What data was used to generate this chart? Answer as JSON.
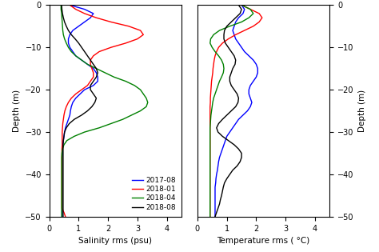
{
  "depth": [
    0,
    -1,
    -2,
    -3,
    -4,
    -5,
    -6,
    -7,
    -8,
    -9,
    -10,
    -11,
    -12,
    -13,
    -14,
    -15,
    -16,
    -17,
    -18,
    -19,
    -20,
    -21,
    -22,
    -23,
    -24,
    -25,
    -26,
    -27,
    -28,
    -29,
    -30,
    -31,
    -32,
    -33,
    -34,
    -35,
    -36,
    -37,
    -38,
    -39,
    -40,
    -41,
    -42,
    -43,
    -44,
    -45,
    -46,
    -47,
    -48,
    -49,
    -50
  ],
  "sal_2017_08": [
    0.7,
    1.2,
    1.5,
    1.4,
    1.2,
    1.0,
    0.8,
    0.7,
    0.65,
    0.65,
    0.7,
    0.8,
    0.9,
    1.1,
    1.3,
    1.5,
    1.6,
    1.65,
    1.65,
    1.5,
    1.2,
    1.05,
    0.9,
    0.8,
    0.75,
    0.72,
    0.7,
    0.65,
    0.6,
    0.55,
    0.52,
    0.5,
    0.48,
    0.46,
    0.45,
    0.45,
    0.44,
    0.44,
    0.44,
    0.44,
    0.44,
    0.44,
    0.44,
    0.44,
    0.44,
    0.44,
    0.44,
    0.44,
    0.44,
    0.44,
    0.44
  ],
  "sal_2018_01": [
    0.7,
    0.9,
    1.2,
    1.6,
    2.1,
    2.7,
    3.1,
    3.2,
    3.0,
    2.6,
    2.1,
    1.7,
    1.5,
    1.4,
    1.4,
    1.45,
    1.5,
    1.5,
    1.4,
    1.3,
    1.1,
    0.9,
    0.75,
    0.65,
    0.58,
    0.53,
    0.5,
    0.48,
    0.46,
    0.45,
    0.44,
    0.44,
    0.44,
    0.44,
    0.43,
    0.43,
    0.43,
    0.43,
    0.43,
    0.43,
    0.43,
    0.43,
    0.43,
    0.43,
    0.43,
    0.43,
    0.43,
    0.43,
    0.43,
    0.5,
    0.55
  ],
  "sal_2018_04": [
    0.4,
    0.4,
    0.42,
    0.43,
    0.44,
    0.45,
    0.46,
    0.48,
    0.52,
    0.58,
    0.65,
    0.75,
    0.9,
    1.1,
    1.3,
    1.6,
    1.9,
    2.2,
    2.6,
    2.9,
    3.1,
    3.2,
    3.3,
    3.35,
    3.3,
    3.1,
    2.8,
    2.5,
    2.1,
    1.7,
    1.2,
    0.85,
    0.6,
    0.5,
    0.45,
    0.43,
    0.42,
    0.42,
    0.42,
    0.42,
    0.42,
    0.42,
    0.42,
    0.42,
    0.42,
    0.42,
    0.42,
    0.42,
    0.42,
    0.42,
    0.42
  ],
  "sal_2018_08": [
    0.42,
    0.43,
    0.45,
    0.48,
    0.52,
    0.58,
    0.65,
    0.75,
    0.88,
    1.0,
    1.1,
    1.2,
    1.3,
    1.4,
    1.5,
    1.6,
    1.65,
    1.6,
    1.5,
    1.4,
    1.4,
    1.5,
    1.6,
    1.55,
    1.45,
    1.3,
    1.1,
    0.85,
    0.68,
    0.58,
    0.52,
    0.5,
    0.48,
    0.47,
    0.47,
    0.47,
    0.47,
    0.47,
    0.47,
    0.47,
    0.47,
    0.47,
    0.47,
    0.47,
    0.47,
    0.47,
    0.47,
    0.47,
    0.47,
    0.47,
    0.47
  ],
  "tmp_2017_08": [
    1.5,
    1.6,
    1.55,
    1.4,
    1.3,
    1.25,
    1.2,
    1.25,
    1.3,
    1.4,
    1.5,
    1.6,
    1.75,
    1.9,
    2.0,
    2.05,
    2.05,
    2.0,
    1.9,
    1.8,
    1.75,
    1.75,
    1.8,
    1.85,
    1.8,
    1.7,
    1.55,
    1.4,
    1.3,
    1.2,
    1.1,
    1.0,
    0.95,
    0.9,
    0.85,
    0.8,
    0.75,
    0.72,
    0.7,
    0.68,
    0.65,
    0.63,
    0.62,
    0.6,
    0.6,
    0.6,
    0.6,
    0.6,
    0.6,
    0.6,
    0.6
  ],
  "tmp_2018_01": [
    1.5,
    1.8,
    2.1,
    2.2,
    2.1,
    1.9,
    1.6,
    1.3,
    1.05,
    0.85,
    0.72,
    0.65,
    0.6,
    0.57,
    0.55,
    0.53,
    0.52,
    0.5,
    0.48,
    0.47,
    0.46,
    0.45,
    0.44,
    0.44,
    0.43,
    0.43,
    0.43,
    0.43,
    0.43,
    0.43,
    0.43,
    0.43,
    0.43,
    0.43,
    0.43,
    0.43,
    0.43,
    0.43,
    0.43,
    0.43,
    0.43,
    0.43,
    0.43,
    0.43,
    0.43,
    0.43,
    0.43,
    0.43,
    0.43,
    0.43,
    0.43
  ],
  "tmp_2018_04": [
    1.5,
    1.8,
    1.9,
    1.75,
    1.5,
    1.1,
    0.75,
    0.55,
    0.45,
    0.43,
    0.5,
    0.6,
    0.72,
    0.82,
    0.88,
    0.9,
    0.88,
    0.82,
    0.75,
    0.7,
    0.65,
    0.6,
    0.55,
    0.52,
    0.5,
    0.48,
    0.46,
    0.45,
    0.44,
    0.43,
    0.43,
    0.43,
    0.43,
    0.43,
    0.43,
    0.43,
    0.43,
    0.43,
    0.43,
    0.43,
    0.43,
    0.43,
    0.43,
    0.43,
    0.43,
    0.43,
    0.43,
    0.43,
    0.43,
    0.43,
    0.43
  ],
  "tmp_2018_08": [
    1.4,
    1.5,
    1.45,
    1.3,
    1.15,
    1.0,
    0.92,
    0.9,
    0.9,
    0.95,
    1.05,
    1.15,
    1.25,
    1.3,
    1.28,
    1.2,
    1.15,
    1.1,
    1.1,
    1.15,
    1.25,
    1.35,
    1.4,
    1.38,
    1.3,
    1.15,
    1.0,
    0.85,
    0.72,
    0.65,
    0.7,
    0.85,
    1.05,
    1.25,
    1.4,
    1.5,
    1.5,
    1.45,
    1.35,
    1.2,
    1.1,
    1.0,
    0.92,
    0.88,
    0.85,
    0.82,
    0.78,
    0.75,
    0.7,
    0.65,
    0.6
  ],
  "colors": {
    "2017-08": "blue",
    "2018-01": "red",
    "2018-04": "green",
    "2018-08": "black"
  },
  "labels": [
    "2017-08",
    "2018-01",
    "2018-04",
    "2018-08"
  ],
  "sal_xlabel": "Salinity rms (psu)",
  "tmp_xlabel": "Temperature rms ( °C)",
  "ylabel": "Depth (m)",
  "ylim": [
    -50,
    0
  ],
  "sal_xlim": [
    0,
    4.5
  ],
  "tmp_xlim": [
    0,
    4.5
  ],
  "xticks_sal": [
    0,
    1,
    2,
    3,
    4
  ],
  "xticks_tmp": [
    0,
    1,
    2,
    3,
    4
  ],
  "yticks": [
    0,
    -10,
    -20,
    -30,
    -40,
    -50
  ]
}
